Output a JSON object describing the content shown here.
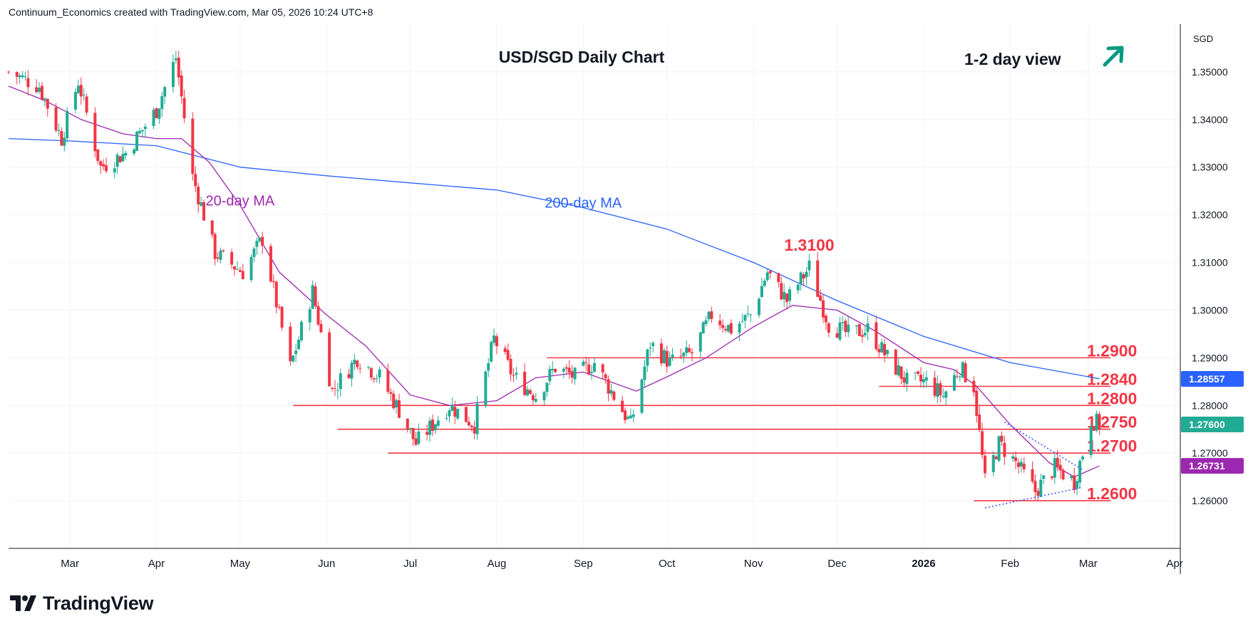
{
  "header": {
    "credit": "Continuum_Economics created with TradingView.com, Mar 05, 2026 10:24 UTC+8"
  },
  "logo": {
    "icon": "tradingview-logo-icon",
    "text": "TradingView"
  },
  "colors": {
    "up": "#22ab94",
    "down": "#f23645",
    "ma20": "#9c27b0",
    "ma200": "#2962ff",
    "level": "#f23645",
    "grid": "#f0f3fa",
    "axis_text": "#131722",
    "badge_ma200": "#2962ff",
    "badge_price": "#22ab94",
    "badge_ma20": "#9c27b0",
    "arrow": "#089981",
    "trendline": "#3d5afe"
  },
  "chart_data": {
    "type": "candlestick",
    "title": "USD/SGD Daily Chart",
    "view_label": "1-2 day view",
    "view_arrow_icon": "arrow-up-right-icon",
    "currency": "SGD",
    "ylim": [
      1.25,
      1.36
    ],
    "y_ticks": [
      "1.35000",
      "1.34000",
      "1.33000",
      "1.32000",
      "1.31000",
      "1.30000",
      "1.29000",
      "1.28000",
      "1.27000",
      "1.26000"
    ],
    "x_ticks": [
      "Mar",
      "Apr",
      "May",
      "Jun",
      "Jul",
      "Aug",
      "Sep",
      "Oct",
      "Nov",
      "Dec",
      "2026",
      "Feb",
      "Mar",
      "Apr"
    ],
    "price_badges": [
      {
        "name": "200-day MA",
        "value": "1.28557",
        "y": 1.28557,
        "color_key": "badge_ma200"
      },
      {
        "name": "last price",
        "value": "1.27600",
        "y": 1.276,
        "color_key": "badge_price"
      },
      {
        "name": "20-day MA",
        "value": "1.26731",
        "y": 1.26731,
        "color_key": "badge_ma20"
      }
    ],
    "levels": [
      {
        "value": 1.29,
        "label": "1.2900",
        "x_start": "2025-08-19",
        "x_end": "2026-03-05"
      },
      {
        "value": 1.284,
        "label": "1.2840",
        "x_start": "2025-12-16",
        "x_end": "2026-03-05"
      },
      {
        "value": 1.28,
        "label": "1.2800",
        "x_start": "2025-05-20",
        "x_end": "2026-03-05"
      },
      {
        "value": 1.275,
        "label": "1.2750",
        "x_start": "2025-06-05",
        "x_end": "2026-03-05"
      },
      {
        "value": 1.27,
        "label": "1.2700",
        "x_start": "2025-06-23",
        "x_end": "2026-03-05"
      },
      {
        "value": 1.26,
        "label": "1.2600",
        "x_start": "2026-01-19",
        "x_end": "2026-03-05"
      }
    ],
    "annotations": [
      {
        "text": "1.3100",
        "x": "2025-11-21",
        "y": 1.3125
      },
      {
        "text": "20-day MA",
        "x": "2025-05-01",
        "y": 1.322
      },
      {
        "text": "200-day MA",
        "x": "2025-09-01",
        "y": 1.3215
      }
    ],
    "ma200": [
      [
        "2025-02-07",
        1.336
      ],
      [
        "2025-03-01",
        1.3355
      ],
      [
        "2025-04-01",
        1.3345
      ],
      [
        "2025-05-01",
        1.33
      ],
      [
        "2025-06-01",
        1.3282
      ],
      [
        "2025-07-01",
        1.3267
      ],
      [
        "2025-08-01",
        1.3252
      ],
      [
        "2025-09-01",
        1.3215
      ],
      [
        "2025-10-01",
        1.317
      ],
      [
        "2025-11-01",
        1.31
      ],
      [
        "2025-12-01",
        1.302
      ],
      [
        "2026-01-01",
        1.2945
      ],
      [
        "2026-02-01",
        1.289
      ],
      [
        "2026-03-05",
        1.2856
      ]
    ],
    "ma20": [
      [
        "2025-02-07",
        1.347
      ],
      [
        "2025-02-20",
        1.344
      ],
      [
        "2025-03-05",
        1.34
      ],
      [
        "2025-03-20",
        1.337
      ],
      [
        "2025-04-01",
        1.336
      ],
      [
        "2025-04-10",
        1.336
      ],
      [
        "2025-04-20",
        1.331
      ],
      [
        "2025-05-01",
        1.322
      ],
      [
        "2025-05-15",
        1.308
      ],
      [
        "2025-06-01",
        1.299
      ],
      [
        "2025-06-15",
        1.2925
      ],
      [
        "2025-07-01",
        1.2822
      ],
      [
        "2025-07-15",
        1.28
      ],
      [
        "2025-08-01",
        1.281
      ],
      [
        "2025-08-15",
        1.2858
      ],
      [
        "2025-09-01",
        1.287
      ],
      [
        "2025-09-20",
        1.283
      ],
      [
        "2025-10-01",
        1.286
      ],
      [
        "2025-10-15",
        1.29
      ],
      [
        "2025-11-01",
        1.2965
      ],
      [
        "2025-11-15",
        1.301
      ],
      [
        "2025-12-01",
        1.3
      ],
      [
        "2025-12-15",
        1.2955
      ],
      [
        "2026-01-01",
        1.289
      ],
      [
        "2026-01-12",
        1.2875
      ],
      [
        "2026-01-20",
        1.284
      ],
      [
        "2026-02-01",
        1.276
      ],
      [
        "2026-02-15",
        1.268
      ],
      [
        "2026-02-24",
        1.265
      ],
      [
        "2026-03-05",
        1.2673
      ]
    ],
    "trendlines": [
      {
        "name": "falling trendline",
        "points": [
          [
            "2026-01-30",
            1.2765
          ],
          [
            "2026-02-27",
            1.2665
          ]
        ]
      },
      {
        "name": "rising trendline",
        "points": [
          [
            "2026-01-23",
            1.2585
          ],
          [
            "2026-02-27",
            1.2628
          ]
        ]
      }
    ],
    "ohlc_anchors": [
      [
        "2025-02-07",
        1.35
      ],
      [
        "2025-02-18",
        1.347
      ],
      [
        "2025-02-26",
        1.336
      ],
      [
        "2025-03-04",
        1.348
      ],
      [
        "2025-03-12",
        1.33
      ],
      [
        "2025-03-21",
        1.333
      ],
      [
        "2025-04-01",
        1.342
      ],
      [
        "2025-04-08",
        1.353
      ],
      [
        "2025-04-14",
        1.328
      ],
      [
        "2025-04-22",
        1.312
      ],
      [
        "2025-05-02",
        1.308
      ],
      [
        "2025-05-09",
        1.315
      ],
      [
        "2025-05-19",
        1.288
      ],
      [
        "2025-05-27",
        1.304
      ],
      [
        "2025-06-03",
        1.283
      ],
      [
        "2025-06-12",
        1.29
      ],
      [
        "2025-06-20",
        1.286
      ],
      [
        "2025-06-27",
        1.279
      ],
      [
        "2025-07-03",
        1.272
      ],
      [
        "2025-07-15",
        1.28
      ],
      [
        "2025-07-24",
        1.276
      ],
      [
        "2025-07-31",
        1.294
      ],
      [
        "2025-08-07",
        1.286
      ],
      [
        "2025-08-15",
        1.282
      ],
      [
        "2025-08-22",
        1.288
      ],
      [
        "2025-08-29",
        1.286
      ],
      [
        "2025-09-05",
        1.289
      ],
      [
        "2025-09-12",
        1.282
      ],
      [
        "2025-09-18",
        1.276
      ],
      [
        "2025-09-25",
        1.293
      ],
      [
        "2025-10-02",
        1.289
      ],
      [
        "2025-10-10",
        1.291
      ],
      [
        "2025-10-17",
        1.299
      ],
      [
        "2025-10-24",
        1.296
      ],
      [
        "2025-10-31",
        1.299
      ],
      [
        "2025-11-06",
        1.308
      ],
      [
        "2025-11-13",
        1.302
      ],
      [
        "2025-11-21",
        1.309
      ],
      [
        "2025-11-28",
        1.297
      ],
      [
        "2025-12-05",
        1.295
      ],
      [
        "2025-12-12",
        1.296
      ],
      [
        "2025-12-19",
        1.29
      ],
      [
        "2025-12-26",
        1.285
      ],
      [
        "2026-01-02",
        1.285
      ],
      [
        "2026-01-08",
        1.282
      ],
      [
        "2026-01-14",
        1.288
      ],
      [
        "2026-01-19",
        1.284
      ],
      [
        "2026-01-23",
        1.264
      ],
      [
        "2026-01-28",
        1.272
      ],
      [
        "2026-02-03",
        1.268
      ],
      [
        "2026-02-10",
        1.262
      ],
      [
        "2026-02-17",
        1.267
      ],
      [
        "2026-02-24",
        1.264
      ],
      [
        "2026-02-27",
        1.27
      ],
      [
        "2026-03-02",
        1.277
      ],
      [
        "2026-03-05",
        1.276
      ]
    ]
  }
}
